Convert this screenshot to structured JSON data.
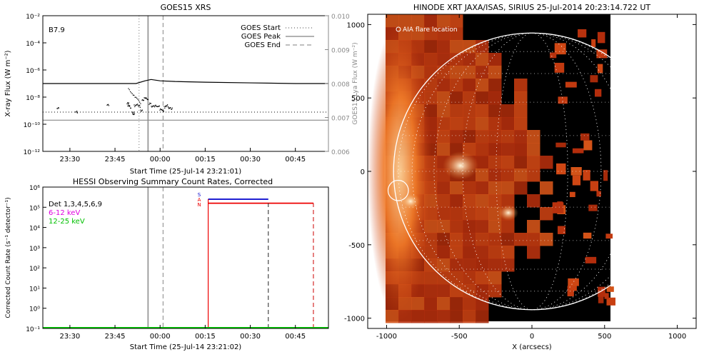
{
  "chart_data": [
    {
      "type": "line",
      "title": "GOES15 XRS",
      "flare_class": "B7.9",
      "xlabel": "Start Time (25-Jul-14 23:21:01)",
      "ylabel": "X-ray Flux (W m⁻²)",
      "ylabel_right": "GOES15 Lya Flux (W m⁻²)",
      "x_ticks": [
        "23:30",
        "23:45",
        "00:00",
        "00:15",
        "00:30",
        "00:45"
      ],
      "y_ticks": [
        "10⁻¹²",
        "10⁻¹⁰",
        "10⁻⁸",
        "10⁻⁶",
        "10⁻⁴",
        "10⁻²"
      ],
      "y_right_ticks": [
        "0.006",
        "0.007",
        "0.008",
        "0.009",
        "0.010"
      ],
      "ylim": [
        -12,
        -2
      ],
      "yscale": "log",
      "legend": [
        {
          "label": "GOES Start",
          "style": "dotted"
        },
        {
          "label": "GOES Peak",
          "style": "solid"
        },
        {
          "label": "GOES End",
          "style": "dashed"
        }
      ],
      "legend_position": "top-right",
      "markers": {
        "start": "23:53",
        "peak": "23:56",
        "end": "00:01"
      },
      "series": [
        {
          "color": "#000000",
          "x": [
            "23:21",
            "23:52",
            "23:55",
            "23:57",
            "00:00",
            "00:05",
            "00:15",
            "00:30",
            "00:45",
            "00:56"
          ],
          "log_values": [
            -7.0,
            -7.0,
            -6.8,
            -6.7,
            -6.8,
            -6.85,
            -6.9,
            -6.95,
            -7.0,
            -7.0
          ]
        },
        {
          "color": "#888888",
          "x": [
            "23:21",
            "00:56"
          ],
          "log_values": [
            -9.7,
            -9.7
          ]
        }
      ]
    },
    {
      "type": "line",
      "title": "HESSI Observing Summary Count Rates, Corrected",
      "xlabel": "Start Time (25-Jul-14 23:21:02)",
      "ylabel": "Corrected Count Rate (s⁻¹ detector⁻¹)",
      "x_ticks": [
        "23:30",
        "23:45",
        "00:00",
        "00:15",
        "00:30",
        "00:45"
      ],
      "y_ticks": [
        "10⁻¹",
        "10⁰",
        "10¹",
        "10²",
        "10³",
        "10⁴",
        "10⁵",
        "10⁶"
      ],
      "ylim": [
        -1,
        6
      ],
      "yscale": "log",
      "legend": [
        {
          "label": "Det 1,3,4,5,6,9",
          "color": "#000000"
        },
        {
          "label": "6-12 keV",
          "color": "#e000e0"
        },
        {
          "label": "12-25 keV",
          "color": "#00d000"
        }
      ],
      "legend_position": "top-left",
      "flag_labels": [
        "S",
        "A",
        "N"
      ],
      "series": [
        {
          "name": "blue",
          "color": "#0000cc",
          "x": [
            "00:16",
            "00:36"
          ],
          "log_values": [
            5.4,
            5.4
          ]
        },
        {
          "name": "red",
          "color": "#ee0000",
          "x": [
            "00:16",
            "00:51"
          ],
          "log_values": [
            5.2,
            5.2
          ]
        }
      ]
    },
    {
      "type": "image",
      "title": "HINODE XRT JAXA/ISAS, SIRIUS 25-Jul-2014 20:23:14.722 UT",
      "annotation": "AIA flare location",
      "xlabel": "X (arcsecs)",
      "x_ticks": [
        "-1000",
        "-500",
        "0",
        "500",
        "1000"
      ],
      "y_ticks": [
        "-1000",
        "-500",
        "0",
        "500",
        "1000"
      ],
      "xlim": [
        -1130,
        1130
      ],
      "ylim": [
        -1070,
        1070
      ],
      "solar_radius_arcsec": 952,
      "flare_location": {
        "x": -920,
        "y": -130
      },
      "image_extent": {
        "x": [
          -1080,
          470
        ],
        "y": [
          -1050,
          1030
        ]
      }
    }
  ]
}
